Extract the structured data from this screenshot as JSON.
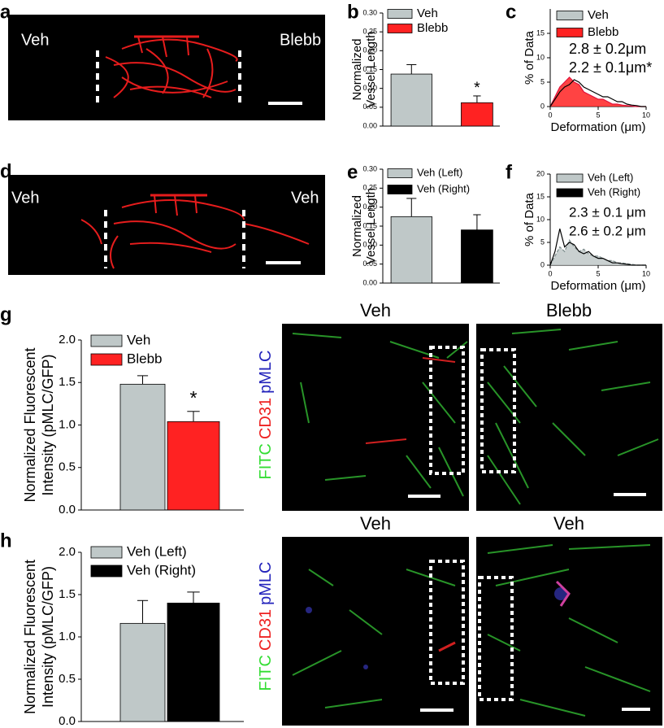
{
  "images": [
    {
      "panel": "a",
      "labels": [
        "Veh",
        "Blebb"
      ]
    },
    {
      "panel": "d",
      "labels": [
        "Veh",
        "Veh"
      ]
    }
  ],
  "micrographs": [
    {
      "titles": [
        "Veh",
        "Blebb"
      ],
      "stain": [
        "FITC",
        "CD31",
        "pMLC"
      ]
    },
    {
      "titles": [
        "Veh",
        "Veh"
      ],
      "stain": [
        "FITC",
        "CD31",
        "pMLC"
      ]
    }
  ],
  "chart_data": [
    {
      "type": "bar",
      "panel": "b",
      "ylabel": [
        "Normalized",
        "Vessel Length"
      ],
      "ylim": [
        0,
        0.3
      ],
      "yticks": [
        {
          "value": 0,
          "label": "0.00"
        },
        {
          "value": 0.05,
          "label": "0.05"
        },
        {
          "value": 0.1,
          "label": "0.10"
        },
        {
          "value": 0.15,
          "label": "0.15"
        },
        {
          "value": 0.2,
          "label": "0.20"
        },
        {
          "value": 0.25,
          "label": "0.25"
        },
        {
          "value": 0.3,
          "label": "0.30"
        }
      ],
      "series": [
        {
          "name": "Veh",
          "color": "#bfc8c8",
          "values": [
            0.138
          ],
          "errors": [
            0.025
          ]
        },
        {
          "name": "Blebb",
          "color": "#ff2222",
          "values": [
            0.062
          ],
          "errors": [
            0.018
          ]
        }
      ],
      "annotation": "*"
    },
    {
      "type": "line",
      "panel": "c",
      "ylabel": [
        "% of Data"
      ],
      "xlabel": "Deformation (μm)",
      "xlim": [
        0,
        10
      ],
      "xticks": [
        0,
        5,
        10
      ],
      "ylim": [
        0,
        20
      ],
      "yticks": [
        0,
        5,
        10,
        15
      ],
      "x": [
        0,
        0.5,
        1,
        1.5,
        2,
        2.5,
        3,
        3.5,
        4,
        4.5,
        5,
        5.5,
        6,
        6.5,
        7,
        7.5,
        8,
        8.5,
        9,
        9.5,
        10
      ],
      "series": [
        {
          "name": "Veh",
          "color": "#bfc8c8",
          "line_color": "#000000",
          "style": "line",
          "values": [
            0,
            1.5,
            3,
            4,
            4.5,
            5.5,
            5,
            4,
            3.5,
            3,
            2.5,
            2,
            2,
            1.5,
            1,
            1,
            0.5,
            0.3,
            0.2,
            0,
            0
          ]
        },
        {
          "name": "Blebb",
          "color": "#ff2222",
          "line_color": "#e0103a",
          "style": "area",
          "values": [
            0,
            2,
            4,
            5,
            6,
            5,
            4.5,
            3,
            2.5,
            2,
            1.5,
            1.5,
            1,
            0.5,
            0.5,
            0.3,
            0.2,
            0.1,
            0,
            0,
            0
          ]
        }
      ],
      "annotations": [
        {
          "text": "2.8 ± 0.2μm",
          "color": "#6b8c88"
        },
        {
          "text": "2.2 ± 0.1μm*",
          "color": "#ff2222"
        }
      ]
    },
    {
      "type": "bar",
      "panel": "e",
      "ylabel": [
        "Normalized",
        "Vessel Length"
      ],
      "ylim": [
        0,
        0.3
      ],
      "yticks": [
        {
          "value": 0,
          "label": "0.00"
        },
        {
          "value": 0.05,
          "label": "0.05"
        },
        {
          "value": 0.1,
          "label": "0.10"
        },
        {
          "value": 0.15,
          "label": "0.15"
        },
        {
          "value": 0.2,
          "label": "0.20"
        },
        {
          "value": 0.25,
          "label": "0.25"
        },
        {
          "value": 0.3,
          "label": "0.30"
        }
      ],
      "series": [
        {
          "name": "Veh (Left)",
          "color": "#bfc8c8",
          "values": [
            0.175
          ],
          "errors": [
            0.048
          ]
        },
        {
          "name": "Veh (Right)",
          "color": "#000000",
          "values": [
            0.14
          ],
          "errors": [
            0.04
          ]
        }
      ]
    },
    {
      "type": "line",
      "panel": "f",
      "ylabel": [
        "% of Data"
      ],
      "xlabel": "Deformation (μm)",
      "xlim": [
        0,
        10
      ],
      "xticks": [
        0,
        5,
        10
      ],
      "ylim": [
        0,
        20
      ],
      "yticks": [
        0,
        5,
        10,
        15,
        20
      ],
      "x": [
        0,
        0.5,
        1,
        1.5,
        2,
        2.5,
        3,
        3.5,
        4,
        4.5,
        5,
        5.5,
        6,
        6.5,
        7,
        7.5,
        8,
        8.5,
        9,
        9.5,
        10
      ],
      "series": [
        {
          "name": "Veh (Left)",
          "color": "#bfc8c8",
          "line_color": "#7a8a8a",
          "style": "area",
          "dashed": true,
          "values": [
            0,
            2,
            4,
            3,
            5.5,
            4,
            3,
            3.5,
            2.5,
            2,
            2,
            1.5,
            1,
            1,
            0.5,
            0.5,
            0.3,
            0.2,
            0,
            0,
            0
          ]
        },
        {
          "name": "Veh (Right)",
          "color": "#000000",
          "line_color": "#000000",
          "style": "line",
          "values": [
            0,
            3,
            8,
            4,
            5,
            4.5,
            3,
            2.5,
            3,
            2,
            1.5,
            1.5,
            1,
            0.5,
            0.5,
            0.3,
            0.2,
            0,
            0,
            0,
            0
          ]
        }
      ],
      "annotations": [
        {
          "text": "2.3 ± 0.1 μm",
          "color": "#6b8c88"
        },
        {
          "text": "2.6 ± 0.2 μm",
          "color": "#000000"
        }
      ]
    },
    {
      "type": "bar",
      "panel": "g",
      "ylabel": [
        "Normalized Fluorescent",
        "Intensity (pMLC/GFP)"
      ],
      "ylim": [
        0,
        2.0
      ],
      "yticks": [
        {
          "value": 0,
          "label": "0.0"
        },
        {
          "value": 0.5,
          "label": "0.5"
        },
        {
          "value": 1.0,
          "label": "1.0"
        },
        {
          "value": 1.5,
          "label": "1.5"
        },
        {
          "value": 2.0,
          "label": "2.0"
        }
      ],
      "series": [
        {
          "name": "Veh",
          "color": "#bfc8c8",
          "values": [
            1.48
          ],
          "errors": [
            0.1
          ]
        },
        {
          "name": "Blebb",
          "color": "#ff2222",
          "values": [
            1.04
          ],
          "errors": [
            0.12
          ]
        }
      ],
      "annotation": "*"
    },
    {
      "type": "bar",
      "panel": "h",
      "ylabel": [
        "Normalized Fluorescent",
        "Intensity (pMLC/GFP)"
      ],
      "ylim": [
        0,
        2.0
      ],
      "yticks": [
        {
          "value": 0,
          "label": "0.0"
        },
        {
          "value": 0.5,
          "label": "0.5"
        },
        {
          "value": 1.0,
          "label": "1.0"
        },
        {
          "value": 1.5,
          "label": "1.5"
        },
        {
          "value": 2.0,
          "label": "2.0"
        }
      ],
      "series": [
        {
          "name": "Veh (Left)",
          "color": "#bfc8c8",
          "values": [
            1.16
          ],
          "errors": [
            0.27
          ]
        },
        {
          "name": "Veh (Right)",
          "color": "#000000",
          "values": [
            1.4
          ],
          "errors": [
            0.13
          ]
        }
      ]
    }
  ]
}
